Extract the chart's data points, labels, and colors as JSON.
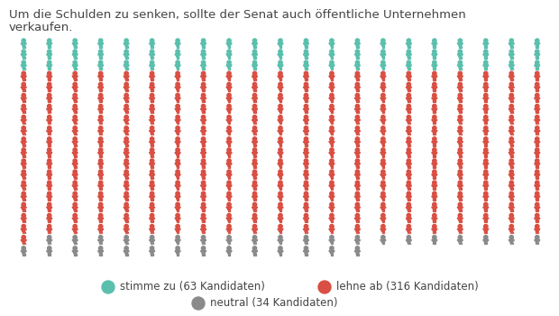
{
  "title_line1": "Um die Schulden zu senken, sollte der Senat auch öffentliche Unternehmen",
  "title_line2": "verkaufen.",
  "stimme_zu": 63,
  "lehne_ab": 316,
  "neutral": 34,
  "total": 413,
  "cols": 21,
  "color_green": "#5bbfad",
  "color_red": "#d94f43",
  "color_gray": "#8a8a8a",
  "background": "#ffffff",
  "legend_items": [
    {
      "label": "stimme zu (63 Kandidaten)",
      "color": "#5bbfad"
    },
    {
      "label": "lehne ab (316 Kandidaten)",
      "color": "#d94f43"
    },
    {
      "label": "neutral (34 Kandidaten)",
      "color": "#8a8a8a"
    }
  ],
  "title_fontsize": 9.5,
  "legend_fontsize": 8.5,
  "fig_width": 6.2,
  "fig_height": 3.5,
  "dpi": 100
}
